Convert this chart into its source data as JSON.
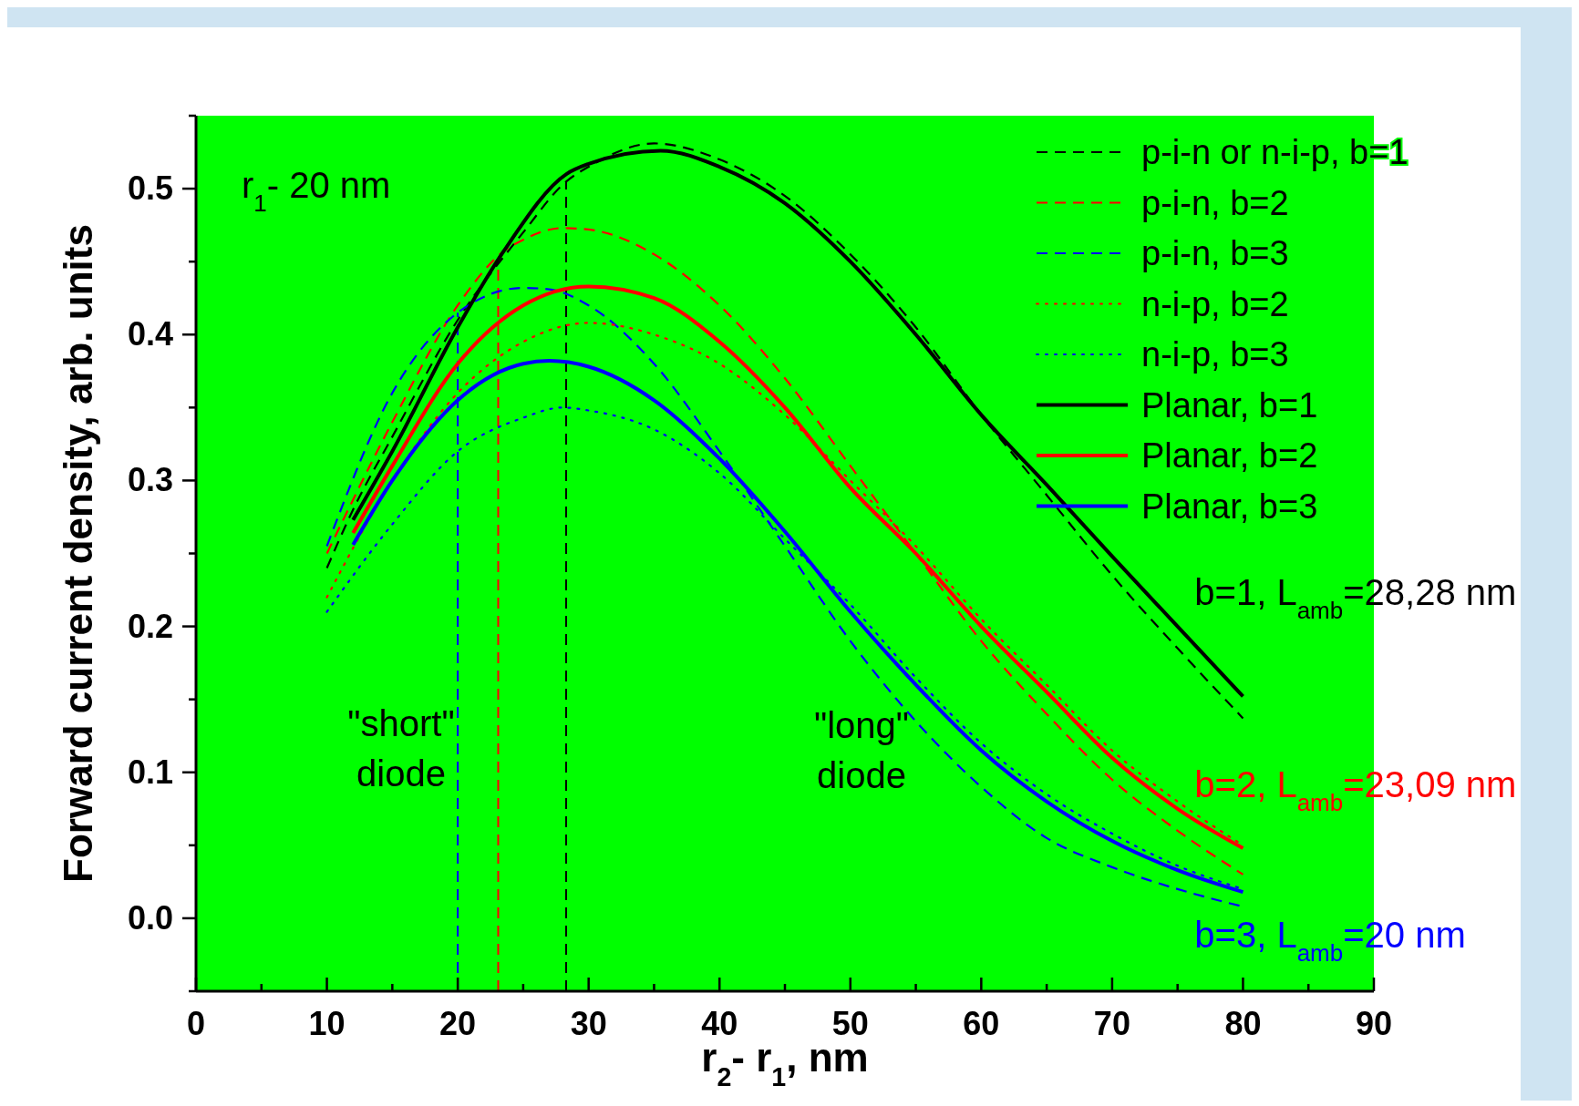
{
  "chart_data": {
    "type": "line",
    "xlabel": "r$_{2}$- r$_{1}$, nm",
    "ylabel": "Forward current density, arb. units",
    "xlim": [
      0,
      90
    ],
    "ylim": [
      -0.05,
      0.55
    ],
    "xticks": [
      0,
      {
        "value": 5,
        "label": null
      },
      10,
      {
        "value": 15,
        "label": null
      },
      20,
      {
        "value": 25,
        "label": null
      },
      30,
      {
        "value": 35,
        "label": null
      },
      40,
      {
        "value": 45,
        "label": null
      },
      50,
      {
        "value": 55,
        "label": null
      },
      60,
      {
        "value": 65,
        "label": null
      },
      70,
      {
        "value": 75,
        "label": null
      },
      80,
      {
        "value": 85,
        "label": null
      },
      90
    ],
    "yticks": [
      {
        "value": -0.05,
        "label": null
      },
      {
        "value": 0,
        "label": "0.0"
      },
      {
        "value": 0.05,
        "label": null
      },
      0.1,
      {
        "value": 0.15,
        "label": null
      },
      0.2,
      {
        "value": 0.25,
        "label": null
      },
      0.3,
      {
        "value": 0.35,
        "label": null
      },
      0.4,
      {
        "value": 0.45,
        "label": null
      },
      0.5,
      {
        "value": 0.55,
        "label": null
      }
    ],
    "grid": false,
    "legend": "top right",
    "marker": "none",
    "series": [
      {
        "name": "p-i-n or n-i-p, b=1",
        "color": "#000000",
        "line_style": "dashed",
        "x": [
          10,
          12,
          15,
          20,
          25,
          28.3,
          30,
          35,
          40,
          45,
          50,
          55,
          60,
          65,
          70,
          75,
          80
        ],
        "values": [
          0.24,
          0.28,
          0.33,
          0.41,
          0.47,
          0.505,
          0.515,
          0.531,
          0.52,
          0.495,
          0.455,
          0.405,
          0.345,
          0.29,
          0.235,
          0.185,
          0.137
        ]
      },
      {
        "name": "p-i-n, b=2",
        "color": "#ff0000",
        "line_style": "dashed",
        "x": [
          10,
          15,
          20,
          23.5,
          25,
          28,
          30,
          35,
          40,
          45,
          50,
          55,
          60,
          65,
          70,
          75,
          80
        ],
        "values": [
          0.25,
          0.34,
          0.42,
          0.457,
          0.465,
          0.473,
          0.472,
          0.455,
          0.42,
          0.37,
          0.31,
          0.25,
          0.19,
          0.14,
          0.095,
          0.06,
          0.03
        ]
      },
      {
        "name": "p-i-n, b=3",
        "color": "#0000ff",
        "line_style": "dashed",
        "x": [
          10,
          15,
          20,
          25,
          27,
          30,
          35,
          40,
          45,
          50,
          55,
          60,
          65,
          70,
          75,
          80
        ],
        "values": [
          0.255,
          0.36,
          0.415,
          0.432,
          0.431,
          0.42,
          0.38,
          0.32,
          0.255,
          0.19,
          0.135,
          0.09,
          0.055,
          0.035,
          0.02,
          0.008
        ]
      },
      {
        "name": "n-i-p, b=2",
        "color": "#ff0000",
        "line_style": "dotted",
        "x": [
          10,
          15,
          20,
          25,
          30,
          35,
          40,
          45,
          50,
          55,
          60,
          65,
          70,
          75,
          80
        ],
        "values": [
          0.22,
          0.3,
          0.36,
          0.395,
          0.408,
          0.4,
          0.38,
          0.345,
          0.3,
          0.255,
          0.205,
          0.16,
          0.115,
          0.08,
          0.05
        ]
      },
      {
        "name": "n-i-p, b=3",
        "color": "#0000ff",
        "line_style": "dotted",
        "x": [
          10,
          15,
          20,
          25,
          28,
          30,
          35,
          40,
          45,
          50,
          55,
          60,
          65,
          70,
          75,
          80
        ],
        "values": [
          0.21,
          0.27,
          0.32,
          0.343,
          0.35,
          0.348,
          0.335,
          0.305,
          0.26,
          0.215,
          0.165,
          0.12,
          0.085,
          0.058,
          0.036,
          0.02
        ]
      },
      {
        "name": "Planar, b=1",
        "color": "#000000",
        "line_style": "solid",
        "x": [
          12,
          15,
          20,
          23.5,
          28.3,
          30,
          35.5,
          40,
          45,
          50,
          55,
          60,
          65,
          70,
          75,
          80
        ],
        "values": [
          0.273,
          0.32,
          0.405,
          0.457,
          0.51,
          0.517,
          0.526,
          0.515,
          0.49,
          0.45,
          0.4,
          0.345,
          0.297,
          0.248,
          0.2,
          0.152
        ]
      },
      {
        "name": "Planar, b=2",
        "color": "#ff0000",
        "line_style": "solid",
        "x": [
          12,
          15,
          20,
          25,
          30,
          35,
          40,
          45,
          50,
          55,
          60,
          65,
          70,
          75,
          80
        ],
        "values": [
          0.264,
          0.31,
          0.38,
          0.42,
          0.433,
          0.425,
          0.395,
          0.35,
          0.295,
          0.25,
          0.2,
          0.155,
          0.11,
          0.075,
          0.048
        ]
      },
      {
        "name": "Planar, b=3",
        "color": "#0000ff",
        "line_style": "solid",
        "x": [
          12,
          15,
          20,
          25,
          27,
          30,
          35,
          40,
          45,
          50,
          55,
          60,
          65,
          70,
          75,
          80
        ],
        "values": [
          0.256,
          0.3,
          0.355,
          0.38,
          0.382,
          0.378,
          0.355,
          0.315,
          0.265,
          0.21,
          0.16,
          0.115,
          0.08,
          0.053,
          0.033,
          0.018
        ]
      }
    ],
    "ref_lines": [
      {
        "axis": "x",
        "value": 20,
        "color": "#0000ff",
        "line_style": "dashed"
      },
      {
        "axis": "x",
        "value": 23.09,
        "color": "#ff0000",
        "line_style": "dashed"
      },
      {
        "axis": "x",
        "value": 28.28,
        "color": "#000000",
        "line_style": "dashed"
      }
    ],
    "annotations": [
      "r$_{1}$- 20 nm",
      "\"short\"\ndiode",
      "\"long\"\ndiode",
      "b=1, L$_{amb}$=28,28 nm",
      "b=2, L$_{amb}$=23,09 nm",
      "b=3, L$_{amb}$=20 nm"
    ]
  }
}
